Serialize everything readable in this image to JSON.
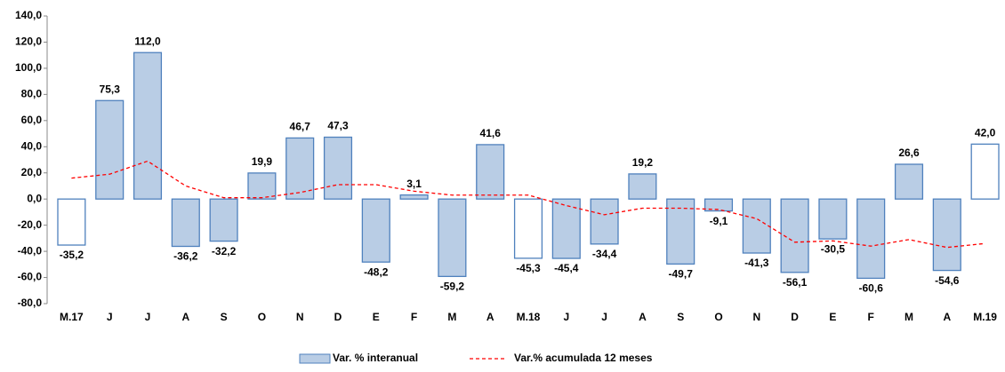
{
  "chart_data": {
    "type": "bar",
    "categories": [
      "M.17",
      "J",
      "J",
      "A",
      "S",
      "O",
      "N",
      "D",
      "E",
      "F",
      "M",
      "A",
      "M.18",
      "J",
      "J",
      "A",
      "S",
      "O",
      "N",
      "D",
      "E",
      "F",
      "M",
      "A",
      "M.19"
    ],
    "series": [
      {
        "name": "Var. % interanual",
        "type": "bar",
        "color": "#b9cde5",
        "edge_color": "#4f81bd",
        "fill_colors": [
          "#ffffff",
          "#b9cde5",
          "#b9cde5",
          "#b9cde5",
          "#b9cde5",
          "#b9cde5",
          "#b9cde5",
          "#b9cde5",
          "#b9cde5",
          "#b9cde5",
          "#b9cde5",
          "#b9cde5",
          "#ffffff",
          "#b9cde5",
          "#b9cde5",
          "#b9cde5",
          "#b9cde5",
          "#b9cde5",
          "#b9cde5",
          "#b9cde5",
          "#b9cde5",
          "#b9cde5",
          "#b9cde5",
          "#b9cde5",
          "#ffffff"
        ],
        "values": [
          -35.2,
          75.3,
          112.0,
          -36.2,
          -32.2,
          19.9,
          46.7,
          47.3,
          -48.2,
          3.1,
          -59.2,
          41.6,
          -45.3,
          -45.4,
          -34.4,
          19.2,
          -49.7,
          -9.1,
          -41.3,
          -56.1,
          -30.5,
          -60.6,
          26.6,
          -54.6,
          42.0
        ],
        "value_labels": [
          "-35,2",
          "75,3",
          "112,0",
          "-36,2",
          "-32,2",
          "19,9",
          "46,7",
          "47,3",
          "-48,2",
          "3,1",
          "-59,2",
          "41,6",
          "-45,3",
          "-45,4",
          "-34,4",
          "19,2",
          "-49,7",
          "-9,1",
          "-41,3",
          "-56,1",
          "-30,5",
          "-60,6",
          "26,6",
          "-54,6",
          "42,0"
        ]
      },
      {
        "name": "Var.% acumulada 12 meses",
        "type": "line",
        "color": "#ff0000",
        "dashed": true,
        "values": [
          16,
          19,
          29,
          10,
          1,
          1,
          5,
          11,
          11,
          6,
          3,
          3,
          3,
          -5,
          -12,
          -7,
          -7,
          -8,
          -15,
          -33,
          -32,
          -36,
          -31,
          -37,
          -34
        ]
      }
    ],
    "ylim": [
      -80,
      140
    ],
    "yticks": [
      {
        "value": -80,
        "label": "-80,0"
      },
      {
        "value": -60,
        "label": "-60,0"
      },
      {
        "value": -40,
        "label": "-40,0"
      },
      {
        "value": -20,
        "label": "-20,0"
      },
      {
        "value": 0,
        "label": "0,0"
      },
      {
        "value": 20,
        "label": "20,0"
      },
      {
        "value": 40,
        "label": "40,0"
      },
      {
        "value": 60,
        "label": "60,0"
      },
      {
        "value": 80,
        "label": "80,0"
      },
      {
        "value": 100,
        "label": "100,0"
      },
      {
        "value": 120,
        "label": "120,0"
      },
      {
        "value": 140,
        "label": "140,0"
      }
    ],
    "grid": false,
    "legend": "bottom"
  }
}
